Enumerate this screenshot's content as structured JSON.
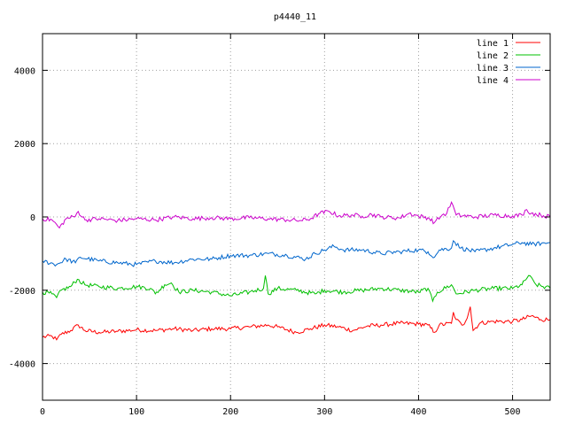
{
  "chart_data": {
    "type": "line",
    "title": "p4440_11",
    "xlabel": "",
    "ylabel": "",
    "xlim": [
      0,
      540
    ],
    "ylim": [
      -5000,
      5000
    ],
    "x_ticks": [
      0,
      100,
      200,
      300,
      400,
      500
    ],
    "y_ticks": [
      -4000,
      -2000,
      0,
      2000,
      4000
    ],
    "grid": true,
    "legend_position": "top-right",
    "series": [
      {
        "name": "line 1",
        "color": "#ff0000",
        "points": [
          [
            0,
            -3280
          ],
          [
            10,
            -3250
          ],
          [
            15,
            -3350
          ],
          [
            20,
            -3200
          ],
          [
            30,
            -3100
          ],
          [
            38,
            -2950
          ],
          [
            45,
            -3100
          ],
          [
            60,
            -3150
          ],
          [
            80,
            -3120
          ],
          [
            100,
            -3080
          ],
          [
            120,
            -3100
          ],
          [
            140,
            -3050
          ],
          [
            160,
            -3100
          ],
          [
            180,
            -3050
          ],
          [
            200,
            -3050
          ],
          [
            220,
            -3000
          ],
          [
            240,
            -2950
          ],
          [
            250,
            -3000
          ],
          [
            270,
            -3150
          ],
          [
            285,
            -3050
          ],
          [
            300,
            -2950
          ],
          [
            315,
            -3000
          ],
          [
            330,
            -3100
          ],
          [
            345,
            -2980
          ],
          [
            360,
            -2950
          ],
          [
            380,
            -2900
          ],
          [
            400,
            -2920
          ],
          [
            410,
            -2950
          ],
          [
            417,
            -3150
          ],
          [
            422,
            -2950
          ],
          [
            435,
            -2900
          ],
          [
            437,
            -2600
          ],
          [
            440,
            -2800
          ],
          [
            446,
            -2950
          ],
          [
            450,
            -2850
          ],
          [
            455,
            -2450
          ],
          [
            458,
            -3100
          ],
          [
            465,
            -2900
          ],
          [
            480,
            -2850
          ],
          [
            500,
            -2850
          ],
          [
            510,
            -2800
          ],
          [
            520,
            -2700
          ],
          [
            530,
            -2800
          ],
          [
            540,
            -2800
          ]
        ]
      },
      {
        "name": "line 2",
        "color": "#00c000",
        "points": [
          [
            0,
            -2050
          ],
          [
            10,
            -2100
          ],
          [
            15,
            -2200
          ],
          [
            20,
            -2000
          ],
          [
            30,
            -1900
          ],
          [
            37,
            -1700
          ],
          [
            45,
            -1850
          ],
          [
            60,
            -1900
          ],
          [
            80,
            -1950
          ],
          [
            100,
            -1900
          ],
          [
            115,
            -1950
          ],
          [
            120,
            -2100
          ],
          [
            130,
            -1850
          ],
          [
            137,
            -1800
          ],
          [
            145,
            -2050
          ],
          [
            160,
            -2000
          ],
          [
            180,
            -2050
          ],
          [
            200,
            -2150
          ],
          [
            220,
            -2050
          ],
          [
            235,
            -1950
          ],
          [
            237,
            -1600
          ],
          [
            240,
            -2100
          ],
          [
            250,
            -1950
          ],
          [
            270,
            -2000
          ],
          [
            290,
            -2100
          ],
          [
            300,
            -2000
          ],
          [
            320,
            -2050
          ],
          [
            340,
            -2000
          ],
          [
            360,
            -1950
          ],
          [
            380,
            -2000
          ],
          [
            400,
            -2050
          ],
          [
            410,
            -1950
          ],
          [
            415,
            -2300
          ],
          [
            420,
            -2050
          ],
          [
            435,
            -1850
          ],
          [
            440,
            -2100
          ],
          [
            460,
            -2000
          ],
          [
            480,
            -1950
          ],
          [
            500,
            -1950
          ],
          [
            510,
            -1850
          ],
          [
            517,
            -1600
          ],
          [
            525,
            -1850
          ],
          [
            540,
            -1950
          ]
        ]
      },
      {
        "name": "line 3",
        "color": "#0066cc",
        "points": [
          [
            0,
            -1200
          ],
          [
            15,
            -1300
          ],
          [
            25,
            -1150
          ],
          [
            35,
            -1250
          ],
          [
            40,
            -1100
          ],
          [
            60,
            -1200
          ],
          [
            80,
            -1250
          ],
          [
            100,
            -1300
          ],
          [
            120,
            -1200
          ],
          [
            140,
            -1250
          ],
          [
            160,
            -1150
          ],
          [
            180,
            -1150
          ],
          [
            200,
            -1050
          ],
          [
            220,
            -1050
          ],
          [
            240,
            -1000
          ],
          [
            260,
            -1050
          ],
          [
            280,
            -1150
          ],
          [
            290,
            -1000
          ],
          [
            300,
            -900
          ],
          [
            310,
            -800
          ],
          [
            320,
            -900
          ],
          [
            340,
            -900
          ],
          [
            360,
            -1000
          ],
          [
            380,
            -950
          ],
          [
            400,
            -900
          ],
          [
            410,
            -950
          ],
          [
            417,
            -1100
          ],
          [
            422,
            -900
          ],
          [
            435,
            -850
          ],
          [
            437,
            -650
          ],
          [
            445,
            -850
          ],
          [
            460,
            -950
          ],
          [
            480,
            -850
          ],
          [
            500,
            -750
          ],
          [
            510,
            -700
          ],
          [
            520,
            -750
          ],
          [
            540,
            -700
          ]
        ]
      },
      {
        "name": "line 4",
        "color": "#cc00cc",
        "points": [
          [
            0,
            -50
          ],
          [
            10,
            -80
          ],
          [
            18,
            -300
          ],
          [
            25,
            -50
          ],
          [
            35,
            20
          ],
          [
            38,
            150
          ],
          [
            45,
            -80
          ],
          [
            60,
            -50
          ],
          [
            80,
            -100
          ],
          [
            100,
            -50
          ],
          [
            120,
            -80
          ],
          [
            140,
            0
          ],
          [
            160,
            -50
          ],
          [
            180,
            -20
          ],
          [
            200,
            -50
          ],
          [
            220,
            -20
          ],
          [
            240,
            -50
          ],
          [
            260,
            -80
          ],
          [
            275,
            -100
          ],
          [
            285,
            -50
          ],
          [
            295,
            100
          ],
          [
            305,
            150
          ],
          [
            315,
            30
          ],
          [
            330,
            50
          ],
          [
            340,
            20
          ],
          [
            350,
            70
          ],
          [
            360,
            0
          ],
          [
            380,
            -30
          ],
          [
            390,
            100
          ],
          [
            400,
            20
          ],
          [
            410,
            -20
          ],
          [
            417,
            -150
          ],
          [
            425,
            50
          ],
          [
            430,
            100
          ],
          [
            435,
            400
          ],
          [
            440,
            50
          ],
          [
            460,
            0
          ],
          [
            480,
            50
          ],
          [
            500,
            30
          ],
          [
            510,
            50
          ],
          [
            515,
            200
          ],
          [
            520,
            100
          ],
          [
            530,
            50
          ],
          [
            540,
            0
          ]
        ]
      }
    ]
  }
}
